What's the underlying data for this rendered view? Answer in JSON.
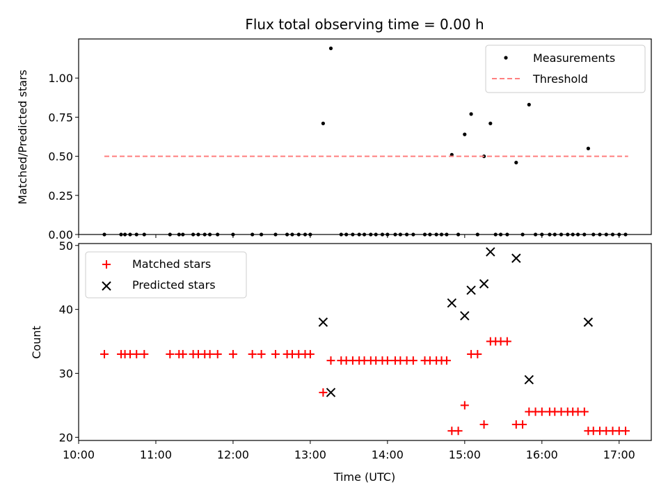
{
  "chart_data": [
    {
      "type": "scatter",
      "title": "Flux total observing time = 0.00 h",
      "xlabel": "",
      "ylabel": "Matched/Predicted stars",
      "ylim": [
        0,
        1.25
      ],
      "xlim": [
        "10:00",
        "17:25"
      ],
      "yticks": [
        "0.00",
        "0.25",
        "0.50",
        "0.75",
        "1.00"
      ],
      "yticks_values": [
        0,
        0.25,
        0.5,
        0.75,
        1.0
      ],
      "legend_position": "upper-right",
      "grid": false,
      "series": [
        {
          "name": "Measurements",
          "color": "#000000",
          "marker": "dot",
          "x": [
            "10:20",
            "10:33",
            "10:36",
            "10:40",
            "10:45",
            "10:51",
            "11:11",
            "11:18",
            "11:21",
            "11:29",
            "11:33",
            "11:38",
            "11:42",
            "11:48",
            "12:00",
            "12:15",
            "12:22",
            "12:33",
            "12:42",
            "12:46",
            "12:51",
            "12:56",
            "13:00",
            "13:10",
            "13:16",
            "13:24",
            "13:28",
            "13:33",
            "13:38",
            "13:42",
            "13:47",
            "13:51",
            "13:56",
            "14:00",
            "14:06",
            "14:10",
            "14:15",
            "14:20",
            "14:29",
            "14:33",
            "14:38",
            "14:42",
            "14:46",
            "14:50",
            "14:55",
            "15:00",
            "15:05",
            "15:10",
            "15:15",
            "15:20",
            "15:24",
            "15:28",
            "15:33",
            "15:40",
            "15:45",
            "15:50",
            "15:55",
            "16:00",
            "16:06",
            "16:10",
            "16:15",
            "16:20",
            "16:24",
            "16:28",
            "16:33",
            "16:36",
            "16:40",
            "16:45",
            "16:50",
            "16:55",
            "17:00",
            "17:05"
          ],
          "y": [
            0,
            0,
            0,
            0,
            0,
            0,
            0,
            0,
            0,
            0,
            0,
            0,
            0,
            0,
            0,
            0,
            0,
            0,
            0,
            0,
            0,
            0,
            0,
            0.71,
            1.19,
            0,
            0,
            0,
            0,
            0,
            0,
            0,
            0,
            0,
            0,
            0,
            0,
            0,
            0,
            0,
            0,
            0,
            0,
            0.51,
            0,
            0.64,
            0.77,
            0,
            0.5,
            0.71,
            0,
            0,
            0,
            0.46,
            0,
            0.83,
            0,
            0,
            0,
            0,
            0,
            0,
            0,
            0,
            0,
            0.55,
            0,
            0,
            0,
            0,
            0,
            0
          ]
        },
        {
          "name": "Threshold",
          "color": "#ff7f7f",
          "style": "dashed",
          "x": [
            "10:20",
            "17:07"
          ],
          "y": [
            0.5,
            0.5
          ]
        }
      ]
    },
    {
      "type": "scatter",
      "title": "",
      "xlabel": "Time (UTC)",
      "ylabel": "Count",
      "ylim": [
        19.5,
        50.3
      ],
      "xlim": [
        "10:00",
        "17:25"
      ],
      "xticks": [
        "10:00",
        "11:00",
        "12:00",
        "13:00",
        "14:00",
        "15:00",
        "16:00",
        "17:00"
      ],
      "yticks": [
        "20",
        "30",
        "40",
        "50"
      ],
      "yticks_values": [
        20,
        30,
        40,
        50
      ],
      "legend_position": "upper-left",
      "grid": false,
      "series": [
        {
          "name": "Matched stars",
          "color": "#ff0000",
          "marker": "plus",
          "x": [
            "10:20",
            "10:33",
            "10:36",
            "10:40",
            "10:45",
            "10:51",
            "11:11",
            "11:18",
            "11:21",
            "11:29",
            "11:33",
            "11:38",
            "11:42",
            "11:48",
            "12:00",
            "12:15",
            "12:22",
            "12:33",
            "12:42",
            "12:46",
            "12:51",
            "12:56",
            "13:00",
            "13:10",
            "13:16",
            "13:24",
            "13:28",
            "13:33",
            "13:38",
            "13:42",
            "13:47",
            "13:51",
            "13:56",
            "14:00",
            "14:06",
            "14:10",
            "14:15",
            "14:20",
            "14:29",
            "14:33",
            "14:38",
            "14:42",
            "14:46",
            "14:50",
            "14:55",
            "15:00",
            "15:05",
            "15:10",
            "15:15",
            "15:20",
            "15:24",
            "15:28",
            "15:33",
            "15:40",
            "15:45",
            "15:50",
            "15:55",
            "16:00",
            "16:06",
            "16:10",
            "16:15",
            "16:20",
            "16:24",
            "16:28",
            "16:33",
            "16:36",
            "16:40",
            "16:45",
            "16:50",
            "16:55",
            "17:00",
            "17:05"
          ],
          "y": [
            33,
            33,
            33,
            33,
            33,
            33,
            33,
            33,
            33,
            33,
            33,
            33,
            33,
            33,
            33,
            33,
            33,
            33,
            33,
            33,
            33,
            33,
            33,
            27,
            32,
            32,
            32,
            32,
            32,
            32,
            32,
            32,
            32,
            32,
            32,
            32,
            32,
            32,
            32,
            32,
            32,
            32,
            32,
            21,
            21,
            25,
            33,
            33,
            22,
            35,
            35,
            35,
            35,
            22,
            22,
            24,
            24,
            24,
            24,
            24,
            24,
            24,
            24,
            24,
            24,
            21,
            21,
            21,
            21,
            21,
            21,
            21
          ]
        },
        {
          "name": "Predicted stars",
          "color": "#000000",
          "marker": "x",
          "x": [
            "13:10",
            "13:16",
            "14:50",
            "15:00",
            "15:05",
            "15:15",
            "15:20",
            "15:40",
            "15:50",
            "16:36"
          ],
          "y": [
            38,
            27,
            41,
            39,
            43,
            44,
            49,
            48,
            29,
            38
          ]
        }
      ]
    }
  ]
}
